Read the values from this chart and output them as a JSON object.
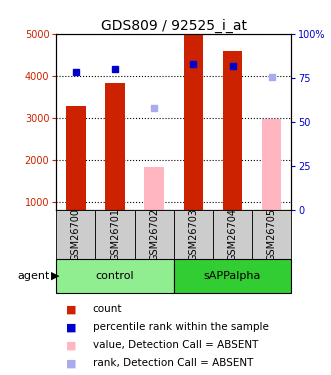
{
  "title": "GDS809 / 92525_i_at",
  "samples": [
    "GSM26700",
    "GSM26701",
    "GSM26702",
    "GSM26703",
    "GSM26704",
    "GSM26705"
  ],
  "groups": [
    {
      "name": "control",
      "color": "#90EE90",
      "samples": [
        0,
        1,
        2
      ]
    },
    {
      "name": "sAPPalpha",
      "color": "#32CD32",
      "samples": [
        3,
        4,
        5
      ]
    }
  ],
  "count_values": [
    3280,
    3820,
    null,
    4960,
    4580,
    null
  ],
  "count_color": "#CC2200",
  "absent_value_values": [
    null,
    null,
    1820,
    null,
    null,
    2980
  ],
  "absent_value_color": "#FFB6C1",
  "percentile_values": [
    4080,
    4160,
    null,
    4280,
    4230,
    null
  ],
  "percentile_color": "#0000CC",
  "absent_rank_values": [
    null,
    null,
    3240,
    null,
    null,
    3960
  ],
  "absent_rank_color": "#AAAAEE",
  "ylim_left": [
    800,
    5000
  ],
  "yticks_left": [
    1000,
    2000,
    3000,
    4000,
    5000
  ],
  "yticks_right": [
    0,
    25,
    50,
    75,
    100
  ],
  "bar_width": 0.5,
  "title_fontsize": 10,
  "tick_fontsize": 7,
  "legend_fontsize": 7.5,
  "label_fontsize": 8,
  "sample_fontsize": 7,
  "background_color": "#ffffff",
  "plot_bg": "#ffffff",
  "left_yaxis_color": "#CC2200",
  "right_yaxis_color": "#0000CC",
  "gray_bg": "#CCCCCC",
  "control_color": "#90EE90",
  "sapp_color": "#32CD32"
}
